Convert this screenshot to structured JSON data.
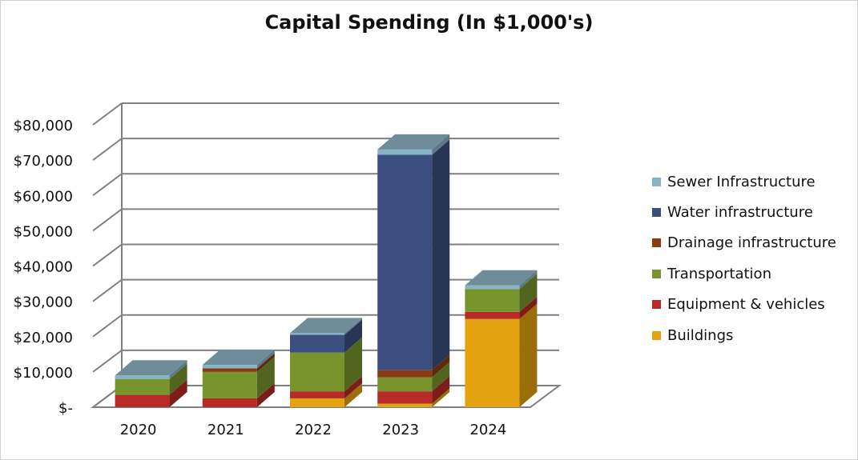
{
  "chart_data": {
    "type": "bar",
    "stacked": true,
    "three_d": true,
    "title": "Capital Spending (In $1,000's)",
    "xlabel": "",
    "ylabel": "",
    "categories": [
      "2020",
      "2021",
      "2022",
      "2023",
      "2024"
    ],
    "ylim": [
      0,
      80000
    ],
    "yticks": [
      0,
      10000,
      20000,
      30000,
      40000,
      50000,
      60000,
      70000,
      80000
    ],
    "ytick_labels": [
      "$-",
      "$10,000",
      "$20,000",
      "$30,000",
      "$40,000",
      "$50,000",
      "$60,000",
      "$70,000",
      "$80,000"
    ],
    "grid": true,
    "legend_position": "right",
    "series": [
      {
        "name": "Buildings",
        "color": "#E3A20F",
        "values": [
          0,
          0,
          2500,
          1000,
          25000
        ]
      },
      {
        "name": "Equipment & vehicles",
        "color": "#B82A28",
        "values": [
          3500,
          2500,
          2000,
          3500,
          2000
        ]
      },
      {
        "name": "Transportation",
        "color": "#77952C",
        "values": [
          4500,
          7500,
          11000,
          4000,
          6500
        ]
      },
      {
        "name": "Drainage infrastructure",
        "color": "#8B3A12",
        "values": [
          0,
          1000,
          0,
          2000,
          0
        ]
      },
      {
        "name": "Water infrastructure",
        "color": "#3C4E7E",
        "values": [
          0,
          0,
          5000,
          61000,
          0
        ]
      },
      {
        "name": "Sewer Infrastructure",
        "color": "#86B4C6",
        "values": [
          1000,
          1000,
          500,
          1500,
          1000
        ]
      }
    ],
    "legend_order": [
      "Sewer Infrastructure",
      "Water infrastructure",
      "Drainage infrastructure",
      "Transportation",
      "Equipment & vehicles",
      "Buildings"
    ]
  }
}
